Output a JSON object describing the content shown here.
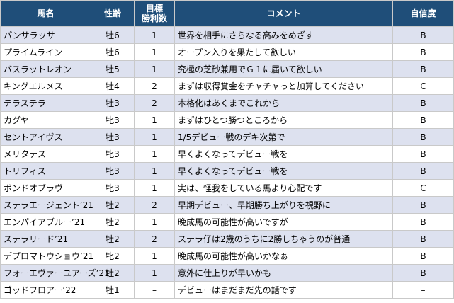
{
  "headers": {
    "name": "馬名",
    "sex_age": "性齢",
    "target_line1": "目標",
    "target_line2": "勝利数",
    "comment": "コメント",
    "confidence": "自信度"
  },
  "rows": [
    {
      "name": "パンサラッサ",
      "sex_age": "牡6",
      "target": "1",
      "comment": "世界を相手にさらなる高みをめざす",
      "confidence": "B"
    },
    {
      "name": "プライムライン",
      "sex_age": "牡6",
      "target": "1",
      "comment": "オープン入りを果たして欲しい",
      "confidence": "B"
    },
    {
      "name": "バスラットレオン",
      "sex_age": "牡5",
      "target": "1",
      "comment": "究極の芝砂兼用でＧ１に届いて欲しい",
      "confidence": "B"
    },
    {
      "name": "キングエルメス",
      "sex_age": "牡4",
      "target": "2",
      "comment": "まずは収得賞金をチャチャっと加算してください",
      "confidence": "C"
    },
    {
      "name": "テラステラ",
      "sex_age": "牡3",
      "target": "2",
      "comment": "本格化はあくまでこれから",
      "confidence": "B"
    },
    {
      "name": "カグヤ",
      "sex_age": "牝3",
      "target": "1",
      "comment": "まずはひとつ勝つところから",
      "confidence": "B"
    },
    {
      "name": "セントアイヴス",
      "sex_age": "牡3",
      "target": "1",
      "comment": "1/5デビュー戦のデキ次第で",
      "confidence": "B"
    },
    {
      "name": "メリタテス",
      "sex_age": "牝3",
      "target": "1",
      "comment": "早くよくなってデビュー戦を",
      "confidence": "B"
    },
    {
      "name": "トリフィス",
      "sex_age": "牝3",
      "target": "1",
      "comment": "早くよくなってデビュー戦を",
      "confidence": "B"
    },
    {
      "name": "ボンドオブラヴ",
      "sex_age": "牝3",
      "target": "1",
      "comment": "実は、怪我をしている馬より心配です",
      "confidence": "C"
    },
    {
      "name": "ステラエージェント’21",
      "sex_age": "牡2",
      "target": "2",
      "comment": "早期デビュー、早期勝ち上がりを視野に",
      "confidence": "B"
    },
    {
      "name": "エンパイアブルー’21",
      "sex_age": "牡2",
      "target": "1",
      "comment": "晩成馬の可能性が高いですが",
      "confidence": "B"
    },
    {
      "name": "ステラリード’21",
      "sex_age": "牡2",
      "target": "2",
      "comment": "ステラ仔は2歳のうちに2勝しちゃうのが普通",
      "confidence": "B"
    },
    {
      "name": "デプロマトウショウ’21",
      "sex_age": "牝2",
      "target": "1",
      "comment": "晩成馬の可能性が高いかなぁ",
      "confidence": "B"
    },
    {
      "name": "フォーエヴァーユアーズ’21",
      "sex_age": "牡2",
      "target": "1",
      "comment": "意外に仕上りが早いかも",
      "confidence": "B"
    },
    {
      "name": "ゴッドフロアー’22",
      "sex_age": "牡1",
      "target": "–",
      "comment": "デビューはまだまだ先の話です",
      "confidence": "–"
    }
  ]
}
